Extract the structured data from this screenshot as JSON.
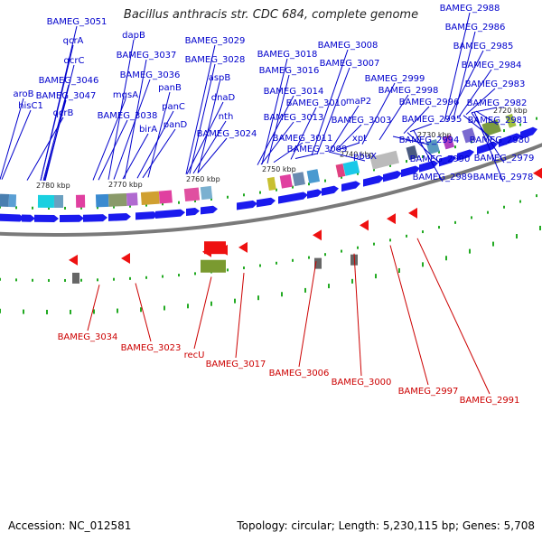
{
  "title": "Bacillus anthracis str. CDC 684, complete genome",
  "footer": {
    "accession_label": "Accession: NC_012581",
    "info_label": "Topology: circular; Length: 5,230,115 bp; Genes: 5,708"
  },
  "colors": {
    "forward_label": "#0000cc",
    "reverse_label": "#cc0000",
    "forward_feature": "#1a1aee",
    "reverse_feature": "#ee1111",
    "backbone": "#7a7a7a",
    "forward_tick": "#22aa22"
  },
  "scale_ticks": [
    "2780 kbp",
    "2770 kbp",
    "2760 kbp",
    "2750 kbp",
    "2740 kbp",
    "2730 kbp",
    "2720 kbp"
  ],
  "forward_genes": [
    "BAMEG_3051",
    "qcrA",
    "qcrC",
    "BAMEG_3046",
    "BAMEG_3047",
    "qcrB",
    "aroB",
    "hisC1",
    "dapB",
    "BAMEG_3037",
    "BAMEG_3036",
    "mgsA",
    "BAMEG_3038",
    "birA",
    "panB",
    "panC",
    "panD",
    "BAMEG_3029",
    "BAMEG_3028",
    "aspB",
    "dnaD",
    "nth",
    "BAMEG_3024",
    "BAMEG_3018",
    "BAMEG_3016",
    "BAMEG_3014",
    "BAMEG_3013",
    "BAMEG_3011",
    "BAMEG_3010",
    "BAMEG_3009",
    "BAMEG_3008",
    "BAMEG_3007",
    "maP2",
    "BAMEG_3003",
    "xpt",
    "pbuX",
    "BAMEG_2999",
    "BAMEG_2998",
    "BAMEG_2996",
    "BAMEG_2995",
    "BAMEG_2994",
    "BAMEG_2990",
    "BAMEG_2989",
    "BAMEG_2988",
    "BAMEG_2986",
    "BAMEG_2985",
    "BAMEG_2984",
    "BAMEG_2983",
    "BAMEG_2982",
    "BAMEG_2981",
    "BAMEG_2980",
    "BAMEG_2979",
    "BAMEG_2978"
  ],
  "reverse_genes": [
    "BAMEG_3034",
    "BAMEG_3023",
    "recU",
    "BAMEG_3017",
    "BAMEG_3006",
    "BAMEG_3000",
    "BAMEG_2997",
    "BAMEG_2991"
  ]
}
